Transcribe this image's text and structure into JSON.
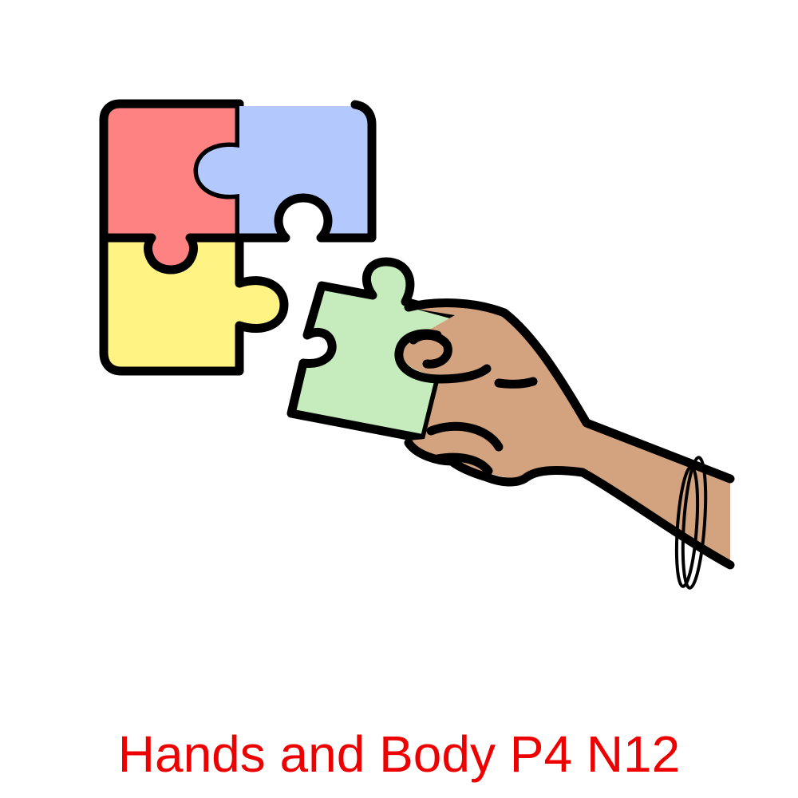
{
  "caption": "Hands and Body P4 N12",
  "colors": {
    "caption": "#ee0000",
    "red_piece": "#ff8282",
    "blue_piece": "#b3c8fd",
    "yellow_piece": "#fef383",
    "green_piece": "#c6ecbd",
    "skin": "#d3a27f",
    "outline": "#000000"
  },
  "icons": [
    "puzzle-piece-icon",
    "hand-icon",
    "bracelet-icon"
  ]
}
